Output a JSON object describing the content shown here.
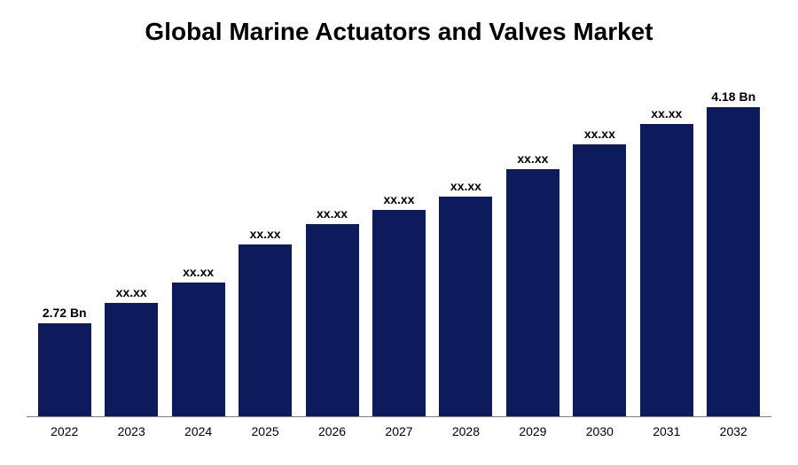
{
  "chart": {
    "type": "bar",
    "title": "Global Marine Actuators and Valves Market",
    "title_fontsize": 28,
    "title_fontweight": "bold",
    "title_color": "#000000",
    "background_color": "#ffffff",
    "bar_color": "#0d1b5c",
    "axis_color": "#808080",
    "label_color": "#000000",
    "label_fontsize": 14,
    "xlabel_fontsize": 14,
    "data": [
      {
        "year": "2022",
        "label": "2.72 Bn",
        "height_pct": 27
      },
      {
        "year": "2023",
        "label": "xx.xx",
        "height_pct": 33
      },
      {
        "year": "2024",
        "label": "xx.xx",
        "height_pct": 39
      },
      {
        "year": "2025",
        "label": "xx.xx",
        "height_pct": 50
      },
      {
        "year": "2026",
        "label": "xx.xx",
        "height_pct": 56
      },
      {
        "year": "2027",
        "label": "xx.xx",
        "height_pct": 60
      },
      {
        "year": "2028",
        "label": "xx.xx",
        "height_pct": 64
      },
      {
        "year": "2029",
        "label": "xx.xx",
        "height_pct": 72
      },
      {
        "year": "2030",
        "label": "xx.xx",
        "height_pct": 79
      },
      {
        "year": "2031",
        "label": "xx.xx",
        "height_pct": 85
      },
      {
        "year": "2032",
        "label": "4.18 Bn",
        "height_pct": 90
      }
    ]
  }
}
